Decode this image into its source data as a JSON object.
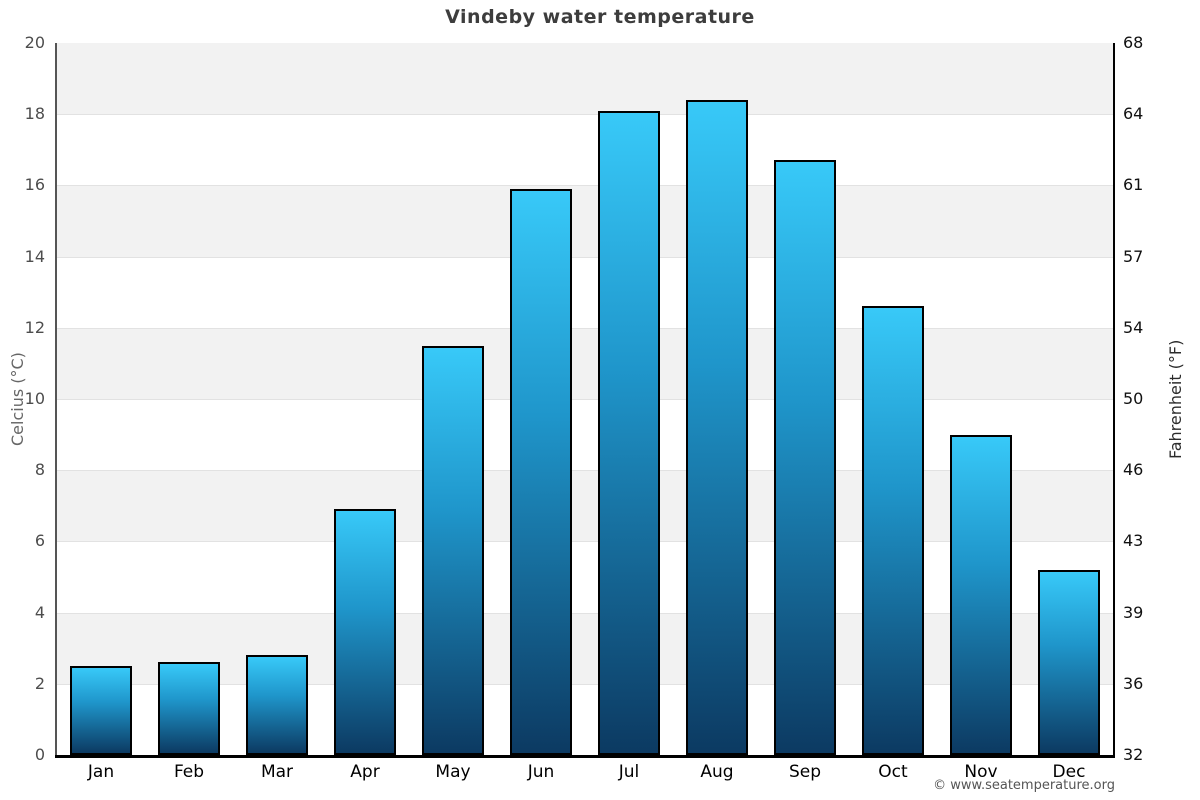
{
  "title": "Vindeby water temperature",
  "footer": {
    "credit": "© www.seatemperature.org"
  },
  "chart_data": {
    "type": "bar",
    "title": "Vindeby water temperature",
    "categories": [
      "Jan",
      "Feb",
      "Mar",
      "Apr",
      "May",
      "Jun",
      "Jul",
      "Aug",
      "Sep",
      "Oct",
      "Nov",
      "Dec"
    ],
    "values": [
      2.5,
      2.6,
      2.8,
      6.9,
      11.5,
      15.9,
      18.1,
      18.4,
      16.7,
      12.6,
      9.0,
      5.2
    ],
    "ylabel_left": "Celcius (°C)",
    "ylabel_right": "Fahrenheit (°F)",
    "ylim": [
      0,
      20
    ],
    "yticks_left": [
      0,
      2,
      4,
      6,
      8,
      10,
      12,
      14,
      16,
      18,
      20
    ],
    "yticks_right": [
      32,
      36,
      39,
      43,
      46,
      50,
      54,
      57,
      61,
      64,
      68
    ],
    "grid": "horizontal gridlines every 2°C with alternating shaded bands",
    "legend": "none",
    "colors": {
      "bar_gradient_top": "#38c9f8",
      "bar_gradient_mid": "#1f96cb",
      "bar_gradient_bottom": "#0c3a62",
      "bar_border": "#000000",
      "band_shade": "#f2f2f2",
      "grid_line": "#e2e2e2",
      "axis_left": "#555555",
      "axis_black": "#000000",
      "title_text": "#3d3d3d",
      "tick_text_left": "#4d4d4d",
      "tick_text_right": "#111111",
      "month_text": "#000000",
      "footer_text": "#555555"
    }
  }
}
